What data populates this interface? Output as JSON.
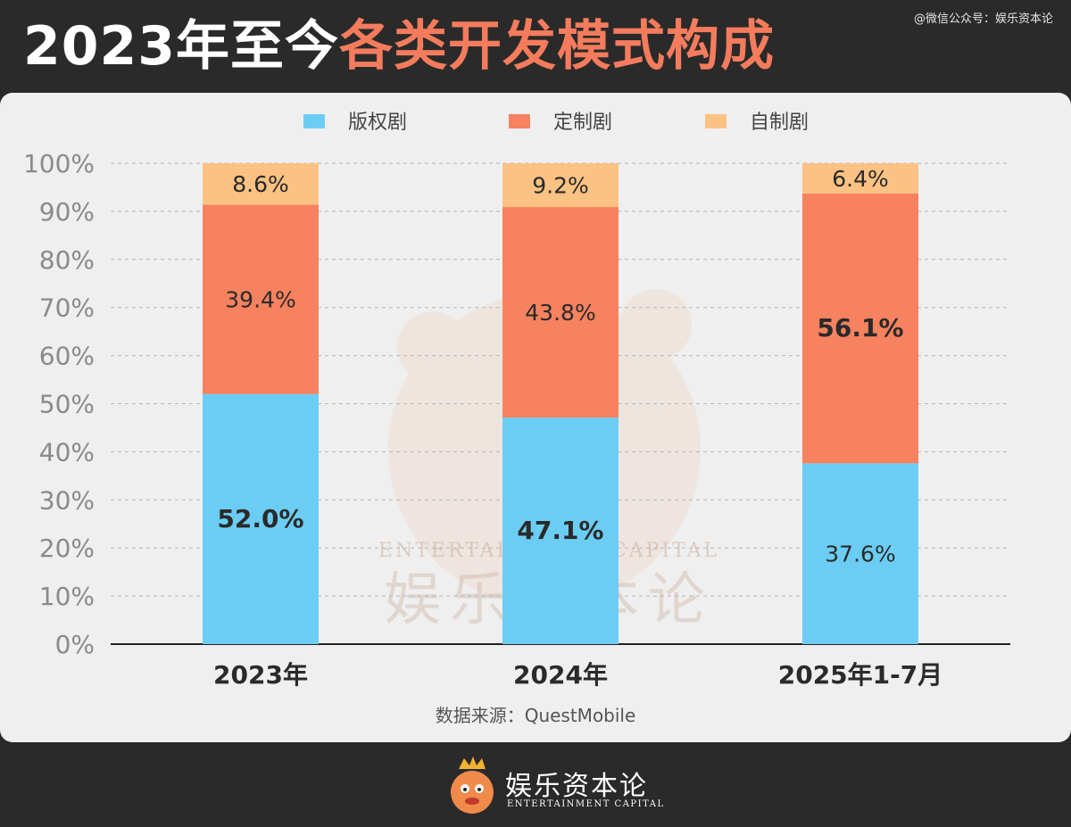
{
  "header": {
    "title_part1": "2023年至今",
    "title_part2": "各类开发模式构成",
    "watermark": "@微信公众号：娱乐资本论"
  },
  "colors": {
    "background": "#2b2a2a",
    "card": "#efefef",
    "title_accent": "#f47c5d",
    "series": [
      "#6ccdf4",
      "#f7825f",
      "#fbc283"
    ]
  },
  "chart_data": {
    "type": "bar",
    "stacked": true,
    "categories": [
      "2023年",
      "2024年",
      "2025年1-7月"
    ],
    "series": [
      {
        "name": "版权剧",
        "values": [
          52.0,
          47.1,
          37.6
        ],
        "labels": [
          "52.0%",
          "47.1%",
          "37.6%"
        ],
        "bold": [
          true,
          true,
          false
        ]
      },
      {
        "name": "定制剧",
        "values": [
          39.4,
          43.8,
          56.1
        ],
        "labels": [
          "39.4%",
          "43.8%",
          "56.1%"
        ],
        "bold": [
          false,
          false,
          true
        ]
      },
      {
        "name": "自制剧",
        "values": [
          8.6,
          9.2,
          6.4
        ],
        "labels": [
          "8.6%",
          "9.2%",
          "6.4%"
        ],
        "bold": [
          false,
          false,
          false
        ]
      }
    ],
    "ylim": [
      0,
      100
    ],
    "yticks": [
      "0%",
      "10%",
      "20%",
      "30%",
      "40%",
      "50%",
      "60%",
      "70%",
      "80%",
      "90%",
      "100%"
    ],
    "grid": true,
    "legend_position": "top-center",
    "source": "数据来源：QuestMobile"
  },
  "watermark_center": {
    "text_cn": "娱乐资本论",
    "text_en": "ENTERTAINMENT CAPITAL"
  },
  "footer": {
    "brand": "娱乐资本论",
    "brand_en": "ENTERTAINMENT CAPITAL",
    "logo_icon": "mascot-icon"
  }
}
